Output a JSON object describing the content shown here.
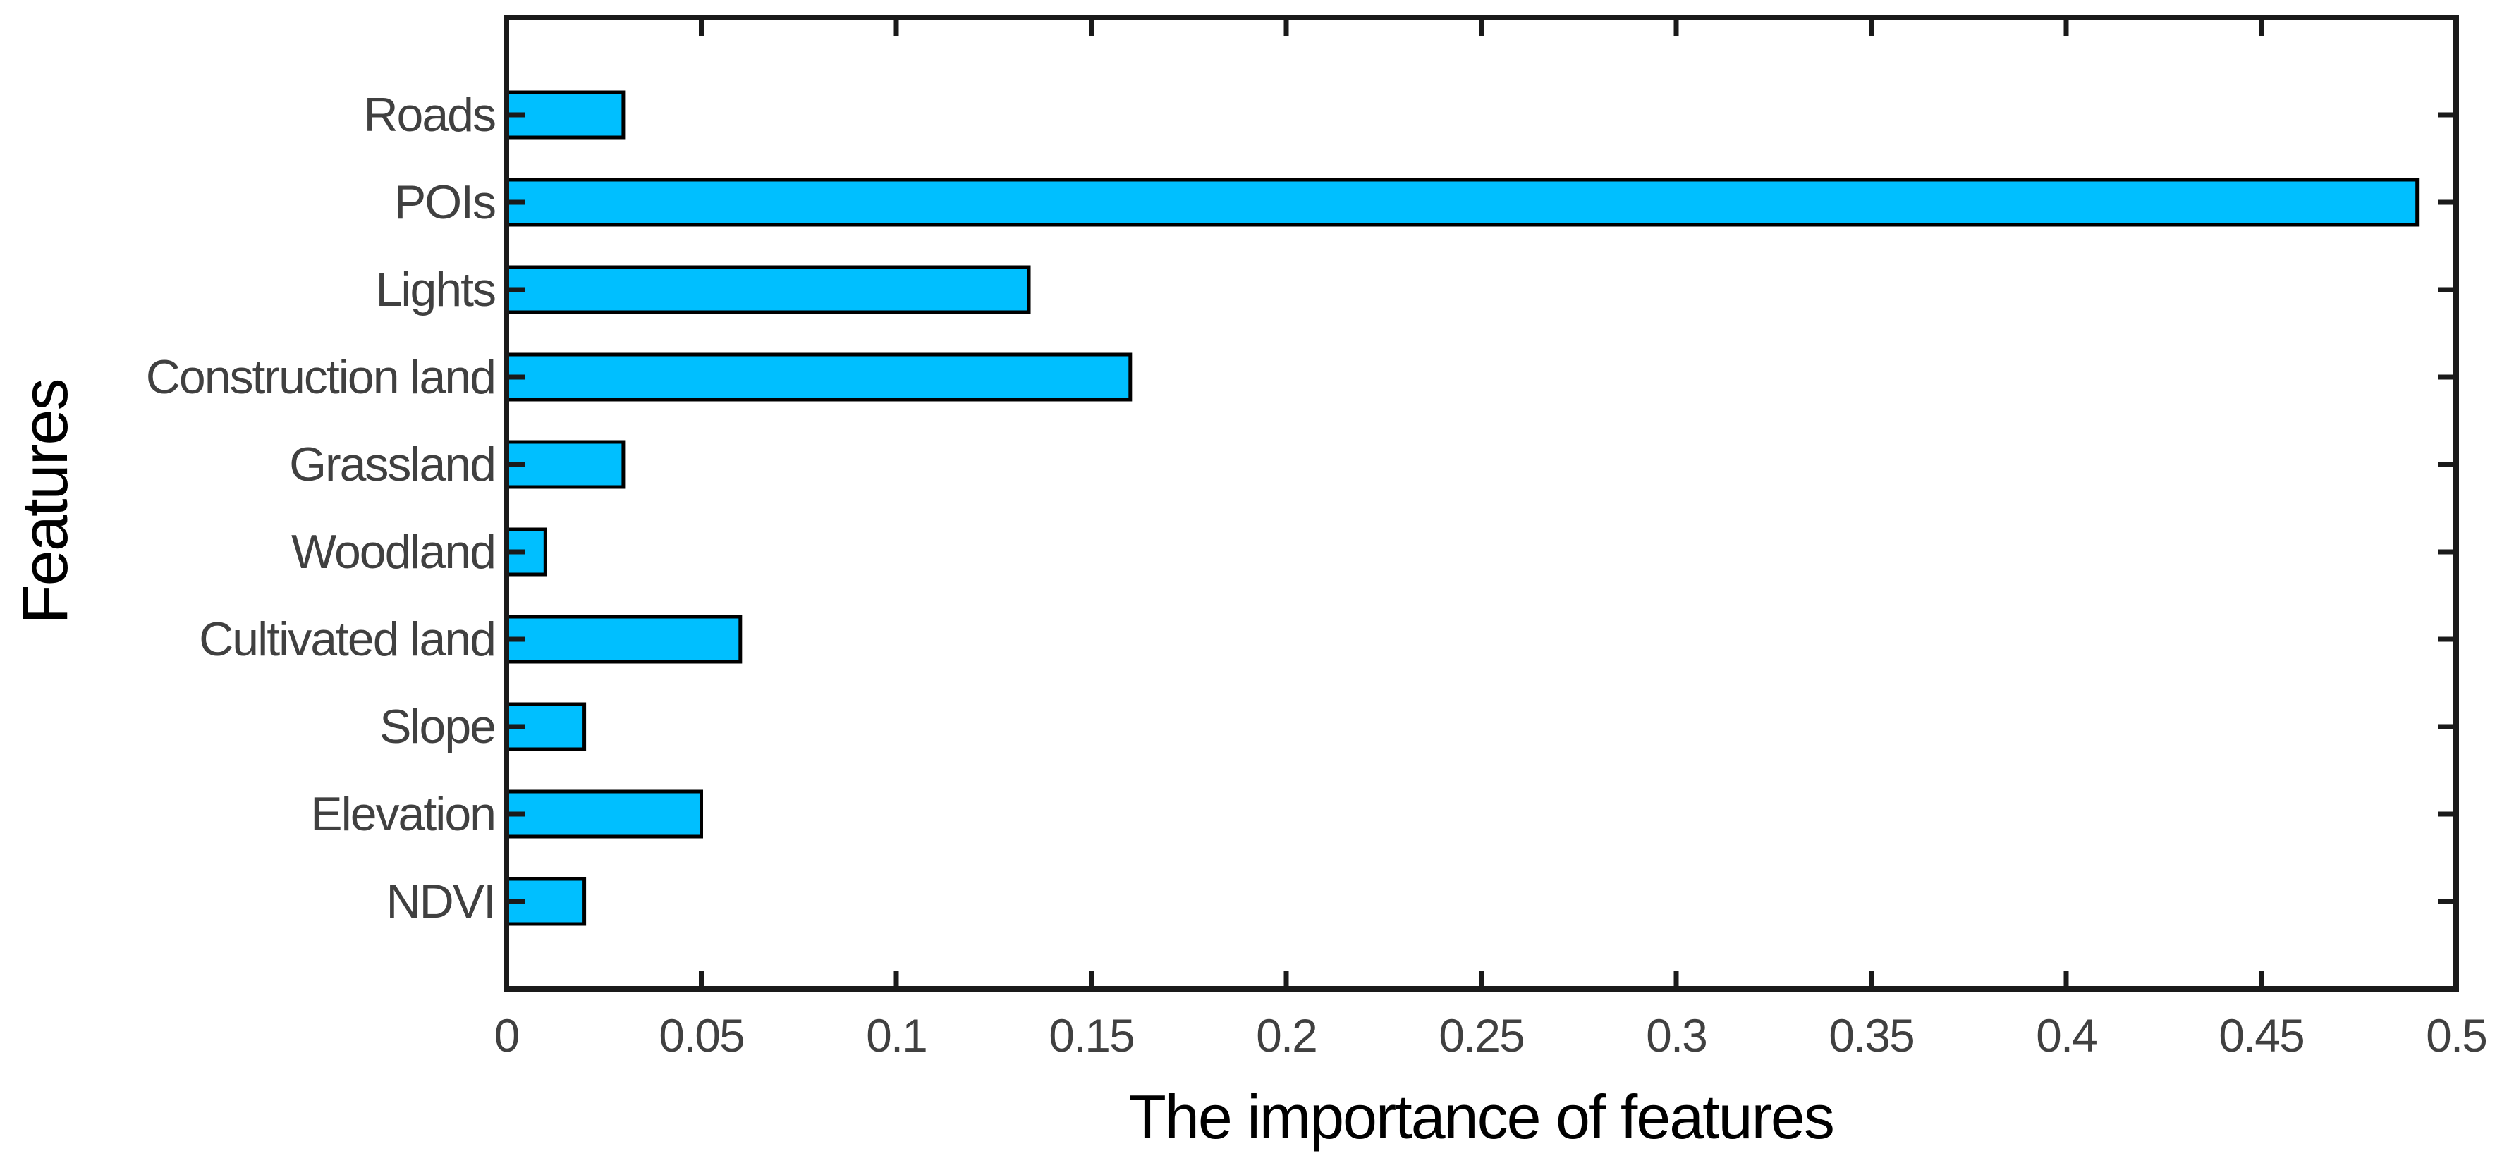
{
  "figure": {
    "background": "#FFFFFF"
  },
  "chart_data": {
    "type": "bar",
    "orientation": "horizontal",
    "title": "",
    "xlabel": "The importance of features",
    "ylabel": "Features",
    "categories": [
      "Roads",
      "POIs",
      "Lights",
      "Construction land",
      "Grassland",
      "Woodland",
      "Cultivated land",
      "Slope",
      "Elevation",
      "NDVI"
    ],
    "values": [
      0.03,
      0.49,
      0.134,
      0.16,
      0.03,
      0.01,
      0.06,
      0.02,
      0.05,
      0.02
    ],
    "xlim": [
      0,
      0.5
    ],
    "xticks": [
      0,
      0.05,
      0.1,
      0.15,
      0.2,
      0.25,
      0.3,
      0.35,
      0.4,
      0.45,
      0.5
    ],
    "xtick_labels": [
      "0",
      "0.05",
      "0.1",
      "0.15",
      "0.2",
      "0.25",
      "0.3",
      "0.35",
      "0.4",
      "0.45",
      "0.5"
    ],
    "grid": false,
    "legend": null,
    "box": true,
    "ticks_mirrored_inward": true,
    "bar_color": "#00BFFF",
    "bar_edge_color": "#000000",
    "axis_color": "#1A1A1A",
    "tick_label_color": "#404040",
    "axis_title_color": "#000000"
  }
}
